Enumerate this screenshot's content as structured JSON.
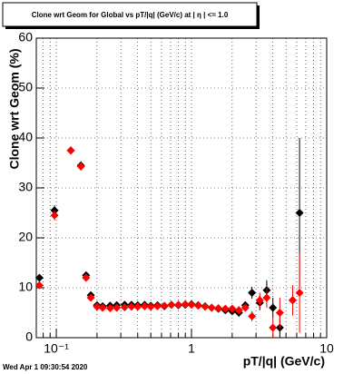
{
  "chart_data": {
    "type": "scatter",
    "title": "Clone wrt Geom for Global vs pT/|q| (GeV/c) at |  η | <= 1.0",
    "x_label": "pT/|q| (GeV/c)",
    "y_label": "Clone wrt Geom (%)",
    "footer": "Wed Apr  1 09:30:54 2020",
    "x_log": true,
    "grid": true,
    "xlim": [
      0.0711,
      10
    ],
    "ylim": [
      0,
      60
    ],
    "xticks": [
      {
        "value": 0.1,
        "label": "10⁻¹"
      },
      1,
      10
    ],
    "xminorticks": [
      0.08,
      0.09,
      0.2,
      0.3,
      0.4,
      0.5,
      0.6,
      0.7,
      0.8,
      0.9,
      2,
      3,
      4,
      5,
      6,
      7,
      8,
      9
    ],
    "yticks": [
      0,
      10,
      20,
      30,
      40,
      50,
      60
    ],
    "x": [
      0.075,
      0.097,
      0.128,
      0.152,
      0.166,
      0.18,
      0.2,
      0.22,
      0.25,
      0.28,
      0.32,
      0.36,
      0.4,
      0.45,
      0.5,
      0.56,
      0.63,
      0.71,
      0.8,
      0.9,
      1.0,
      1.12,
      1.26,
      1.41,
      1.58,
      1.78,
      2.0,
      2.24,
      2.5,
      2.8,
      3.2,
      3.6,
      4.0,
      4.5,
      5.6,
      6.3
    ],
    "series": [
      {
        "name": "black",
        "color": "#000000",
        "values": [
          12,
          25.5,
          37.5,
          34.5,
          12.5,
          8.5,
          6.5,
          6.3,
          6.4,
          6.5,
          6.6,
          6.6,
          6.5,
          6.6,
          6.4,
          6.5,
          6.3,
          6.6,
          6.5,
          6.6,
          6.7,
          6.5,
          6.3,
          6,
          5.8,
          5.5,
          5.3,
          5,
          6.5,
          9,
          7,
          9.5,
          6,
          2,
          7.5,
          25
        ],
        "errors": [
          0.6,
          1,
          0.8,
          0.8,
          0.6,
          0.5,
          0.3,
          0.3,
          0.3,
          0.3,
          0.3,
          0.3,
          0.3,
          0.3,
          0.3,
          0.3,
          0.3,
          0.3,
          0.3,
          0.3,
          0.3,
          0.3,
          0.3,
          0.4,
          0.4,
          0.5,
          0.6,
          0.8,
          0.8,
          1.2,
          1.5,
          2,
          2,
          3,
          3,
          15
        ]
      },
      {
        "name": "red",
        "color": "#ff0000",
        "values": [
          10.5,
          24.5,
          37.5,
          34.3,
          12,
          8,
          6.2,
          6,
          5.9,
          6,
          6.1,
          6.2,
          6.2,
          6.3,
          6.2,
          6.3,
          6.4,
          6.6,
          6.6,
          6.7,
          6.6,
          6.4,
          6.2,
          6,
          5.9,
          5.8,
          5.8,
          5.5,
          6,
          4.3,
          7.5,
          8,
          2,
          5,
          7.5,
          9
        ],
        "errors": [
          0.6,
          1,
          0.8,
          0.8,
          0.6,
          0.5,
          0.3,
          0.3,
          0.3,
          0.3,
          0.3,
          0.3,
          0.3,
          0.3,
          0.3,
          0.3,
          0.3,
          0.3,
          0.3,
          0.3,
          0.3,
          0.3,
          0.3,
          0.4,
          0.4,
          0.5,
          0.6,
          0.8,
          0.8,
          1,
          1.5,
          2,
          2,
          3,
          3,
          8
        ]
      }
    ]
  }
}
